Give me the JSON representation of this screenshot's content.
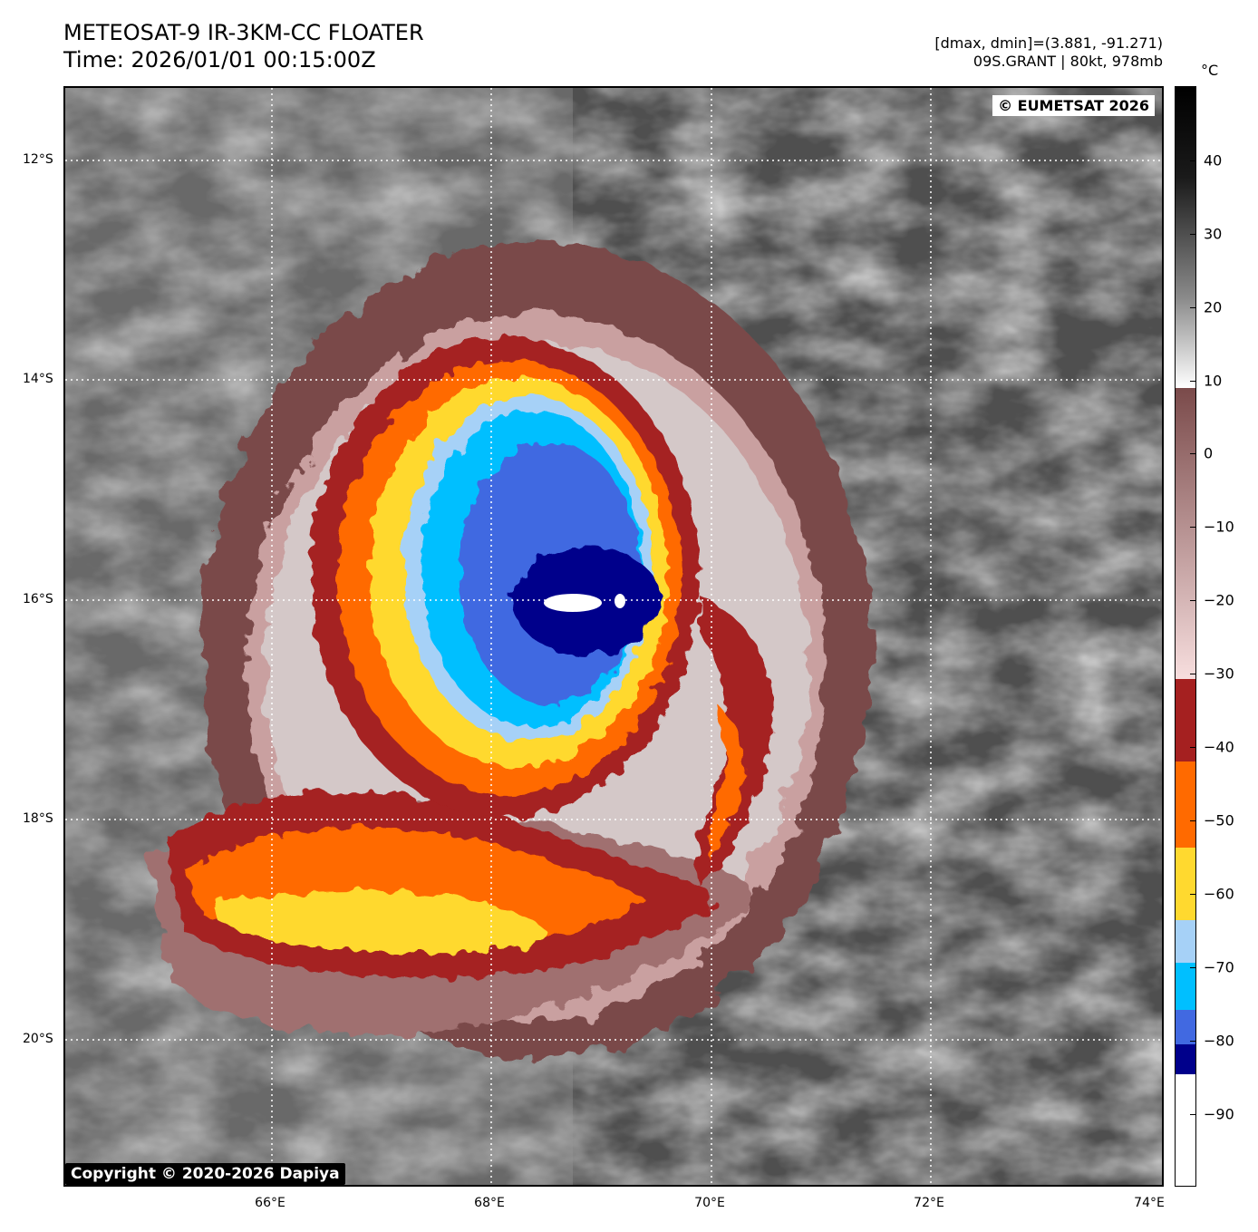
{
  "header": {
    "title_line1": "METEOSAT-9 IR-3KM-CC FLOATER",
    "title_line2": "Time: 2026/01/01 00:15:00Z",
    "info_line1": "[dmax, dmin]=(3.881, -91.271)",
    "info_line2": "09S.GRANT | 80kt, 978mb"
  },
  "map": {
    "watermark_top": "© EUMETSAT 2026",
    "watermark_bottom": "Copyright © 2020-2026 Dapiya",
    "lat_labels": [
      "12°S",
      "14°S",
      "16°S",
      "18°S",
      "20°S"
    ],
    "lon_labels": [
      "66°E",
      "68°E",
      "70°E",
      "72°E",
      "74°E"
    ],
    "storm_name": "09S.GRANT"
  },
  "colorbar": {
    "unit": "°C",
    "ticks": [
      "40",
      "30",
      "20",
      "10",
      "0",
      "−10",
      "−20",
      "−30",
      "−40",
      "−50",
      "−60",
      "−70",
      "−80",
      "−90"
    ],
    "colors": {
      "eye_white": "#ffffff",
      "navy": "#00008b",
      "royal_blue": "#4169e1",
      "deep_sky": "#00bfff",
      "light_blue": "#a6d1f7",
      "yellow": "#ffd92f",
      "orange": "#ff6a00",
      "dark_red": "#a52020",
      "brown": "#7a4a4a",
      "pink": "#f2d6d6"
    }
  }
}
